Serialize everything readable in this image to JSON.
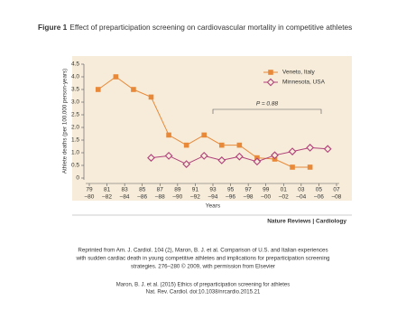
{
  "figure_label": "Figure 1",
  "figure_title": "Effect of preparticipation screening on cardiovascular mortality in competitive athletes",
  "chart_data": {
    "type": "line",
    "y_label": "Athlete deaths (per 100,000 person-years)",
    "x_label": "Years",
    "annotation": "P = 0.88",
    "xlim": [
      1979,
      2007
    ],
    "xticks": [
      {
        "value": 1979,
        "label": [
          "79",
          "–80"
        ]
      },
      {
        "value": 1981,
        "label": [
          "81",
          "–82"
        ]
      },
      {
        "value": 1983,
        "label": [
          "83",
          "–84"
        ]
      },
      {
        "value": 1985,
        "label": [
          "85",
          "–86"
        ]
      },
      {
        "value": 1987,
        "label": [
          "87",
          "–88"
        ]
      },
      {
        "value": 1989,
        "label": [
          "89",
          "–90"
        ]
      },
      {
        "value": 1991,
        "label": [
          "91",
          "–92"
        ]
      },
      {
        "value": 1993,
        "label": [
          "93",
          "–94"
        ]
      },
      {
        "value": 1995,
        "label": [
          "95",
          "–96"
        ]
      },
      {
        "value": 1997,
        "label": [
          "97",
          "–98"
        ]
      },
      {
        "value": 1999,
        "label": [
          "99",
          "–00"
        ]
      },
      {
        "value": 2001,
        "label": [
          "01",
          "–02"
        ]
      },
      {
        "value": 2003,
        "label": [
          "03",
          "–04"
        ]
      },
      {
        "value": 2005,
        "label": [
          "05",
          "–06"
        ]
      },
      {
        "value": 2007,
        "label": [
          "07",
          "–08"
        ]
      }
    ],
    "ylim": [
      0,
      4.5
    ],
    "yticks": [
      {
        "value": 0,
        "label": "0"
      },
      {
        "value": 0.5,
        "label": "0.5"
      },
      {
        "value": 1,
        "label": "1.0"
      },
      {
        "value": 1.5,
        "label": "1.5"
      },
      {
        "value": 2,
        "label": "2.0"
      },
      {
        "value": 2.5,
        "label": "2.5"
      },
      {
        "value": 3,
        "label": "3.0"
      },
      {
        "value": 3.5,
        "label": "3.5"
      },
      {
        "value": 4,
        "label": "4.0"
      },
      {
        "value": 4.5,
        "label": "4.5"
      }
    ],
    "series": [
      {
        "name": "Veneto, Italy",
        "color": "#e8893a",
        "marker": "square",
        "x": [
          1980,
          1982,
          1984,
          1986,
          1988,
          1990,
          1992,
          1994,
          1996,
          1998,
          2000,
          2002,
          2004
        ],
        "values": [
          3.5,
          4.0,
          3.5,
          3.2,
          1.7,
          1.3,
          1.7,
          1.3,
          1.3,
          0.8,
          0.75,
          0.43,
          0.43
        ]
      },
      {
        "name": "Minnesota, USA",
        "color": "#b0407a",
        "marker": "diamond",
        "x": [
          1986,
          1988,
          1990,
          1992,
          1994,
          1996,
          1998,
          2000,
          2002,
          2004,
          2006
        ],
        "values": [
          0.8,
          0.88,
          0.55,
          0.88,
          0.7,
          0.85,
          0.65,
          0.9,
          1.05,
          1.2,
          1.15
        ]
      }
    ]
  },
  "source": "Nature Reviews | Cardiology",
  "caption": [
    "Reprinted from Am. J. Cardiol. 104 (2), Maron, B. J. et al. Comparison of U.S. and Italian experiences",
    "with sudden cardiac death in young competitive athletes and implications for preparticipation screening",
    "strategies. 276–280 © 2009, with permission from Elsevier"
  ],
  "citation": [
    "Maron, B. J. et al. (2015) Ethics of preparticipation screening for athletes",
    "Nat. Rev. Cardiol. doi:10.1038/nrcardio.2015.21"
  ]
}
